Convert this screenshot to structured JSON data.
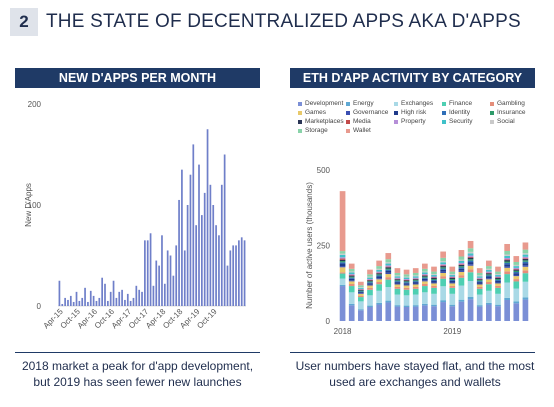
{
  "header": {
    "number": "2",
    "title": "THE STATE OF DECENTRALIZED APPS AKA D'APPS"
  },
  "left": {
    "title": "NEW D'APPS PER MONTH",
    "caption_line1": "2018 market a peak for d'app development,",
    "caption_line2": "but 2019 has seen fewer new launches"
  },
  "right": {
    "title": "ETH D'APP ACTIVITY BY CATEGORY",
    "caption_line1": "User numbers have stayed flat, and the most",
    "caption_line2": "used are exchanges and wallets"
  },
  "chart_data": [
    {
      "type": "bar",
      "title": "NEW D'APPS PER MONTH",
      "ylabel": "New D'Apps",
      "xlabel": "",
      "ylim": [
        0,
        200
      ],
      "yticks": [
        0,
        100,
        200
      ],
      "xtick_labels": [
        "Apr-15",
        "Oct-15",
        "Apr-16",
        "Oct-16",
        "Apr-17",
        "Oct-17",
        "Apr-18",
        "Oct-18",
        "Apr-19",
        "Oct-19"
      ],
      "x_start": "Apr-15",
      "bar_color": "#6f7fc9",
      "values": [
        25,
        2,
        8,
        6,
        10,
        4,
        14,
        5,
        8,
        18,
        4,
        15,
        10,
        5,
        8,
        28,
        22,
        5,
        14,
        25,
        8,
        14,
        16,
        6,
        12,
        5,
        8,
        20,
        16,
        14,
        65,
        65,
        72,
        20,
        45,
        40,
        70,
        22,
        55,
        50,
        30,
        60,
        105,
        135,
        55,
        100,
        130,
        160,
        80,
        140,
        90,
        112,
        175,
        120,
        100,
        80,
        70,
        120,
        150,
        40,
        55,
        60,
        60,
        65,
        68,
        65
      ]
    },
    {
      "type": "bar",
      "stacked": true,
      "title": "ETH D'APP ACTIVITY BY CATEGORY",
      "ylabel": "Number of active users (thousands)",
      "xlabel": "",
      "ylim": [
        0,
        500
      ],
      "yticks": [
        0,
        250,
        500
      ],
      "xtick_labels": [
        "2018",
        "2019"
      ],
      "legend": [
        {
          "name": "Development",
          "color": "#7b8fd6"
        },
        {
          "name": "Energy",
          "color": "#5fa8d3"
        },
        {
          "name": "Exchanges",
          "color": "#a9d9e6"
        },
        {
          "name": "Finance",
          "color": "#4ecfb2"
        },
        {
          "name": "Gambling",
          "color": "#e58e7a"
        },
        {
          "name": "Games",
          "color": "#e8c96a"
        },
        {
          "name": "Governance",
          "color": "#3b4fb2"
        },
        {
          "name": "High risk",
          "color": "#1f3a8a"
        },
        {
          "name": "Identity",
          "color": "#2f6fb8"
        },
        {
          "name": "Insurance",
          "color": "#2e9b6a"
        },
        {
          "name": "Marketplaces",
          "color": "#2b3555"
        },
        {
          "name": "Media",
          "color": "#c24a4a"
        },
        {
          "name": "Property",
          "color": "#b68fd8"
        },
        {
          "name": "Security",
          "color": "#3fc1c9"
        },
        {
          "name": "Social",
          "color": "#c9c9c9"
        },
        {
          "name": "Storage",
          "color": "#89d3a9"
        },
        {
          "name": "Wallet",
          "color": "#e89a8e"
        }
      ],
      "months": 21,
      "totals": [
        430,
        190,
        130,
        170,
        200,
        225,
        175,
        170,
        175,
        190,
        180,
        230,
        180,
        235,
        265,
        175,
        200,
        180,
        255,
        215,
        260
      ]
    }
  ]
}
